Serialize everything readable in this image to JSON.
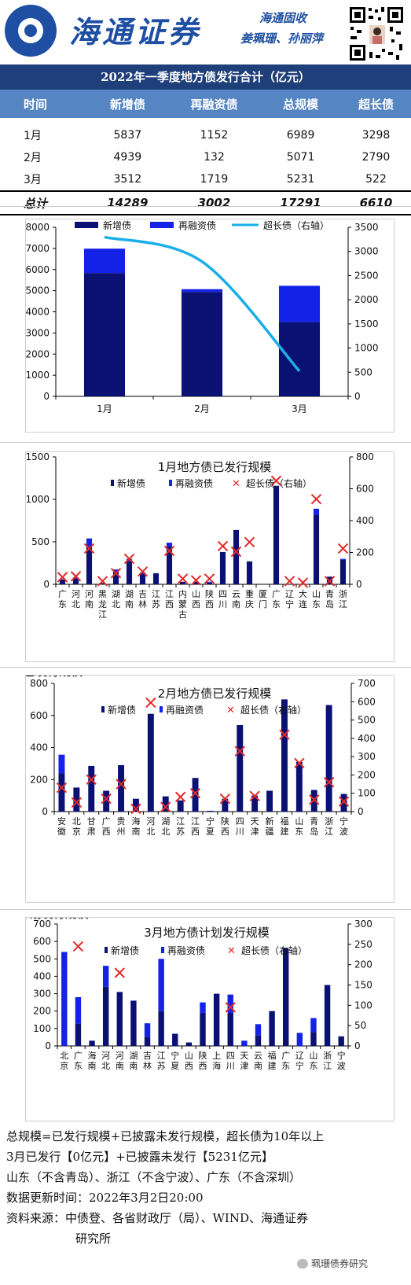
{
  "header": {
    "brand": "海通证券",
    "weekly": "海通固收",
    "authors": "姜珮珊、孙丽萍"
  },
  "table": {
    "title": "2022年一季度地方债发行合计（亿元）",
    "columns": [
      "时间",
      "新增债",
      "再融资债",
      "总规模",
      "超长债"
    ],
    "rows": [
      [
        "1月",
        "5837",
        "1152",
        "6989",
        "3298"
      ],
      [
        "2月",
        "4939",
        "132",
        "5071",
        "2790"
      ],
      [
        "3月",
        "3512",
        "1719",
        "5231",
        "522"
      ]
    ],
    "total": [
      "总计",
      "14289",
      "3002",
      "17291",
      "6610"
    ]
  },
  "legend": {
    "new": "新增债",
    "refi": "再融资债",
    "long_axis": "超长债（右轴）"
  },
  "colors": {
    "new": "#0a1173",
    "refi": "#1421e6",
    "long_line": "#1aaee8",
    "long_marker": "#e12a2a",
    "title_bar": "#1f3f7a",
    "header_row": "#5585c2"
  },
  "chart_data": [
    {
      "type": "bar",
      "categories": [
        "1月",
        "2月",
        "3月"
      ],
      "series": [
        {
          "name": "新增债",
          "values": [
            5837,
            4939,
            3512
          ]
        },
        {
          "name": "再融资债",
          "values": [
            1152,
            132,
            1719
          ]
        },
        {
          "name": "超长债（右轴）",
          "values": [
            3298,
            2790,
            522
          ],
          "axis": "right",
          "kind": "line"
        }
      ],
      "ylim": [
        0,
        8000
      ],
      "yticks": [
        0,
        1000,
        2000,
        3000,
        4000,
        5000,
        6000,
        7000,
        8000
      ],
      "y2lim": [
        0,
        3500
      ],
      "y2ticks": [
        0,
        500,
        1000,
        1500,
        2000,
        2500,
        3000,
        3500
      ]
    },
    {
      "type": "bar",
      "title": "1月地方债已发行规模",
      "categories": [
        "广东",
        "河北",
        "河南",
        "黑龙江",
        "湖北",
        "湖南",
        "吉林",
        "江苏",
        "江西",
        "内蒙古",
        "山西",
        "陕西",
        "四川",
        "云南",
        "重庆",
        "厦门",
        "广东",
        "辽宁",
        "大连",
        "山东",
        "青岛",
        "浙江"
      ],
      "series": [
        {
          "name": "新增债",
          "values": [
            55,
            65,
            440,
            15,
            150,
            270,
            120,
            130,
            440,
            30,
            30,
            20,
            380,
            640,
            270,
            0,
            1160,
            0,
            0,
            820,
            90,
            290
          ]
        },
        {
          "name": "再融资债",
          "values": [
            5,
            15,
            100,
            0,
            25,
            30,
            20,
            0,
            50,
            0,
            0,
            10,
            0,
            0,
            0,
            0,
            0,
            0,
            0,
            70,
            0,
            10
          ]
        },
        {
          "name": "超长债（右轴）",
          "values": [
            45,
            50,
            225,
            20,
            70,
            160,
            80,
            null,
            210,
            35,
            25,
            35,
            240,
            205,
            265,
            null,
            650,
            20,
            10,
            535,
            20,
            225
          ],
          "axis": "right"
        }
      ],
      "ylim": [
        0,
        1500
      ],
      "yticks": [
        0,
        500,
        1000,
        1500
      ],
      "y2lim": [
        0,
        800
      ],
      "y2ticks": [
        0,
        200,
        400,
        600,
        800
      ]
    },
    {
      "type": "bar",
      "title": "2月地方债已发行规模",
      "categories": [
        "安徽",
        "北京",
        "甘肃",
        "广西",
        "贵州",
        "海南",
        "河北",
        "湖北",
        "江苏",
        "江西",
        "宁夏",
        "陕西",
        "四川",
        "天津",
        "新疆",
        "福建",
        "山东",
        "青岛",
        "浙江",
        "宁波"
      ],
      "series": [
        {
          "name": "新增债",
          "values": [
            240,
            150,
            285,
            130,
            290,
            80,
            610,
            95,
            70,
            210,
            5,
            80,
            540,
            100,
            130,
            700,
            310,
            135,
            665,
            110
          ]
        },
        {
          "name": "再融资债",
          "values": [
            115,
            0,
            0,
            0,
            0,
            0,
            0,
            0,
            0,
            0,
            0,
            0,
            0,
            0,
            0,
            0,
            0,
            0,
            0,
            0
          ]
        },
        {
          "name": "超长债（右轴）",
          "values": [
            130,
            50,
            175,
            70,
            150,
            15,
            595,
            25,
            80,
            100,
            null,
            70,
            330,
            85,
            null,
            420,
            265,
            65,
            160,
            55
          ],
          "axis": "right"
        }
      ],
      "ylim": [
        0,
        800
      ],
      "yticks": [
        0,
        200,
        400,
        600,
        800
      ],
      "y2lim": [
        0,
        700
      ],
      "y2ticks": [
        0,
        100,
        200,
        300,
        400,
        500,
        600,
        700
      ]
    },
    {
      "type": "bar",
      "title": "3月地方债计划发行规模",
      "categories": [
        "北京",
        "广东",
        "海南",
        "河北",
        "河南",
        "湖南",
        "吉林",
        "江苏",
        "宁夏",
        "山西",
        "陕西",
        "上海",
        "四川",
        "天津",
        "云南",
        "福建",
        "广东",
        "辽宁",
        "山东",
        "浙江",
        "宁波"
      ],
      "series": [
        {
          "name": "新增债",
          "values": [
            0,
            130,
            30,
            340,
            310,
            260,
            50,
            200,
            70,
            20,
            190,
            300,
            190,
            0,
            60,
            200,
            560,
            0,
            80,
            350,
            55
          ]
        },
        {
          "name": "再融资债",
          "values": [
            540,
            150,
            0,
            120,
            0,
            0,
            80,
            300,
            0,
            0,
            60,
            0,
            105,
            30,
            65,
            0,
            0,
            75,
            80,
            0,
            0
          ]
        },
        {
          "name": "超长债（右轴）",
          "values": [
            null,
            245,
            null,
            null,
            180,
            null,
            null,
            null,
            null,
            null,
            null,
            null,
            95,
            null,
            null,
            null,
            null,
            null,
            null,
            null,
            null
          ],
          "axis": "right"
        }
      ],
      "ylim": [
        0,
        700
      ],
      "yticks": [
        0,
        100,
        200,
        300,
        400,
        500,
        600,
        700
      ],
      "y2lim": [
        0,
        300
      ],
      "y2ticks": [
        0,
        50,
        100,
        150,
        200,
        250,
        300
      ]
    }
  ],
  "notes": {
    "line1": "总规模=已发行规模+已披露未发行规模，超长债为10年以上",
    "line2": "3月已发行【0亿元】+已披露未发行【5231亿元】",
    "line3": "山东（不含青岛）、浙江（不含宁波）、广东（不含深圳）",
    "line4": "数据更新时间：2022年3月2日20:00",
    "line5": "资料来源：中债登、各省财政厅（局）、WIND、海通证券",
    "line6": "研究所"
  },
  "watermark": "珮珊债券研究"
}
